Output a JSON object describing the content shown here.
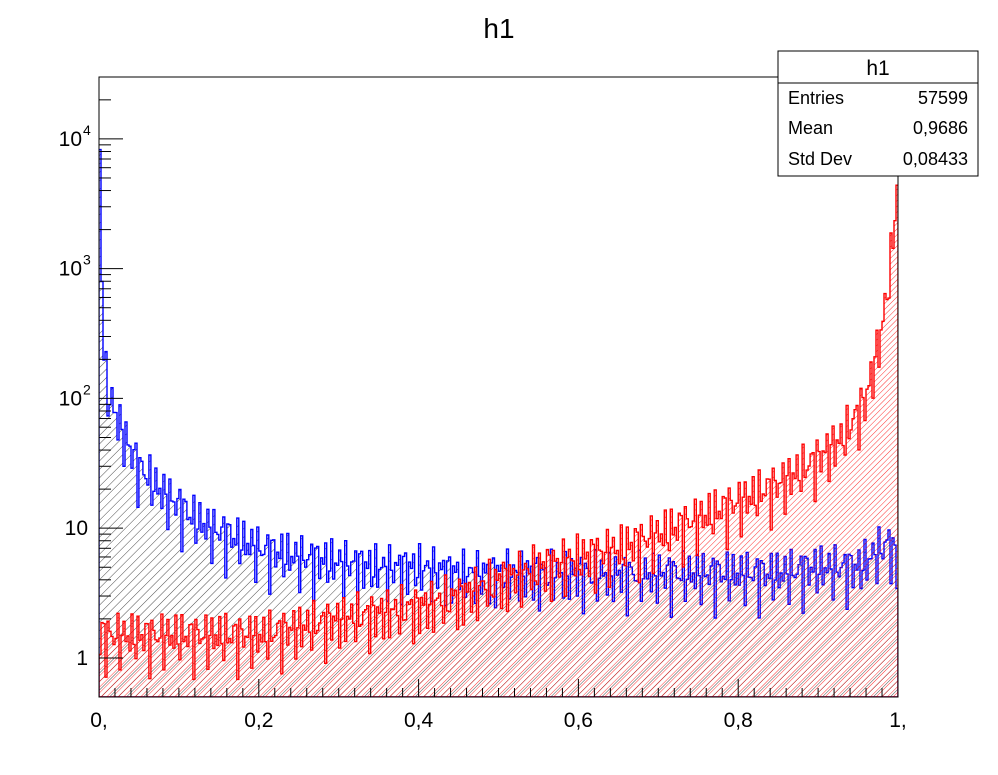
{
  "chart_data": {
    "type": "bar",
    "title": "h1",
    "xlabel": "",
    "ylabel": "",
    "xlim": [
      0,
      1
    ],
    "ylim": [
      0.5,
      30000
    ],
    "log_y": true,
    "grid": false,
    "x_ticks": [
      {
        "value": 0,
        "label": "0,"
      },
      {
        "value": 0.2,
        "label": "0,2"
      },
      {
        "value": 0.4,
        "label": "0,4"
      },
      {
        "value": 0.6,
        "label": "0,6"
      },
      {
        "value": 0.8,
        "label": "0,8"
      },
      {
        "value": 1,
        "label": "1,"
      }
    ],
    "y_ticks": [
      {
        "value": 1,
        "label": "1",
        "exp": ""
      },
      {
        "value": 10,
        "label": "10",
        "exp": ""
      },
      {
        "value": 100,
        "label": "10",
        "exp": "2"
      },
      {
        "value": 1000,
        "label": "10",
        "exp": "3"
      },
      {
        "value": 10000,
        "label": "10",
        "exp": "4"
      }
    ],
    "series": [
      {
        "color": "#0000ff",
        "fill": "black hatching",
        "x": [
          0.0,
          0.005,
          0.01,
          0.02,
          0.03,
          0.04,
          0.05,
          0.06,
          0.07,
          0.08,
          0.09,
          0.1,
          0.12,
          0.14,
          0.16,
          0.18,
          0.2,
          0.25,
          0.3,
          0.35,
          0.4,
          0.45,
          0.5,
          0.55,
          0.6,
          0.65,
          0.7,
          0.75,
          0.8,
          0.85,
          0.9,
          0.95,
          0.99,
          1.0
        ],
        "y": [
          25000,
          300,
          120,
          80,
          55,
          40,
          30,
          26,
          22,
          19,
          17,
          15,
          12,
          10,
          9,
          8,
          7,
          6,
          5.5,
          5,
          5,
          4.5,
          4.5,
          4.5,
          4.5,
          4.5,
          4.5,
          4.5,
          4.5,
          4.5,
          5,
          5,
          8,
          5
        ]
      },
      {
        "color": "#ff0000",
        "fill": "red hatching",
        "x": [
          0.0,
          0.1,
          0.2,
          0.3,
          0.4,
          0.45,
          0.5,
          0.55,
          0.6,
          0.65,
          0.7,
          0.75,
          0.8,
          0.85,
          0.9,
          0.93,
          0.96,
          0.98,
          0.99,
          1.0
        ],
        "y": [
          1.5,
          1.5,
          1.5,
          2,
          2.5,
          3,
          4,
          5,
          6,
          7,
          9,
          12,
          16,
          22,
          35,
          50,
          100,
          350,
          1000,
          5000
        ]
      }
    ]
  },
  "stats_box": {
    "title": "h1",
    "rows": [
      {
        "label": "Entries",
        "value": "57599"
      },
      {
        "label": "Mean",
        "value": "0,9686"
      },
      {
        "label": "Std Dev",
        "value": "0,08433"
      }
    ]
  }
}
